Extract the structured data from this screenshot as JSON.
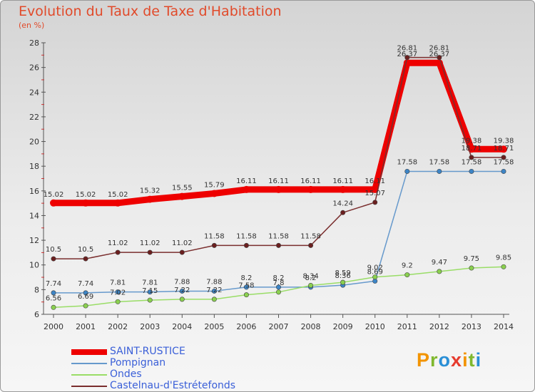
{
  "header": {
    "title": "Evolution du Taux de Taxe d'Habitation",
    "subtitle": "(en %)"
  },
  "brand": {
    "text": "Proxiti",
    "colors": [
      "#f29400",
      "#7fb82e",
      "#2a8fd6",
      "#e63b2e",
      "#f29400",
      "#7fb82e",
      "#2a8fd6"
    ]
  },
  "chart_data": {
    "type": "line",
    "title": "Evolution du Taux de Taxe d'Habitation",
    "subtitle": "(en %)",
    "xlabel": "",
    "ylabel": "",
    "ylim": [
      6,
      28
    ],
    "yticks": [
      6,
      8,
      10,
      12,
      14,
      16,
      18,
      20,
      22,
      24,
      26,
      28
    ],
    "grid": false,
    "legend_position": "bottom-left",
    "categories": [
      "2000",
      "2001",
      "2002",
      "2003",
      "2004",
      "2005",
      "2006",
      "2007",
      "2008",
      "2009",
      "2010",
      "2011",
      "2012",
      "2013",
      "2014"
    ],
    "series": [
      {
        "name": "SAINT-RUSTICE",
        "color": "#ee0000",
        "marker": "#ee0000",
        "thick": true,
        "values": [
          15.02,
          15.02,
          15.02,
          15.32,
          15.55,
          15.79,
          16.11,
          16.11,
          16.11,
          16.11,
          16.11,
          26.37,
          26.37,
          19.38,
          19.38
        ],
        "labels": [
          "15.02",
          "15.02",
          "15.02",
          "15.32",
          "15.55",
          "15.79",
          "16.11",
          "16.11",
          "16.11",
          "16.11",
          "16.11",
          "26.37",
          "26.37",
          "19.38",
          "19.38"
        ]
      },
      {
        "name": "Pompignan",
        "color": "#6699cc",
        "marker": "#3d85c6",
        "thick": false,
        "values": [
          7.74,
          7.74,
          7.81,
          7.81,
          7.88,
          7.88,
          8.2,
          8.2,
          8.2,
          8.36,
          8.69,
          17.58,
          17.58,
          17.58,
          17.58
        ],
        "labels": [
          "7.74",
          "7.74",
          "7.81",
          "7.81",
          "7.88",
          "7.88",
          "8.2",
          "8.2",
          "8.2",
          "8.36",
          "8.69",
          "17.58",
          "17.58",
          "17.58",
          "17.58"
        ]
      },
      {
        "name": "Ondes",
        "color": "#99dd66",
        "marker": "#8ad04f",
        "thick": false,
        "values": [
          6.56,
          6.69,
          7.02,
          7.15,
          7.22,
          7.22,
          7.58,
          7.8,
          8.34,
          8.59,
          9.02,
          9.2,
          9.47,
          9.75,
          9.85
        ],
        "labels": [
          "6.56",
          "6.69",
          "7.02",
          "7.15",
          "7.22",
          "7.22",
          "7.58",
          "7.8",
          "8.34",
          "8.59",
          "9.02",
          "9.2",
          "9.47",
          "9.75",
          "9.85"
        ]
      },
      {
        "name": "Castelnau-d'Estrétefonds",
        "color": "#7a2e2e",
        "marker": "#6b1f1f",
        "thick": false,
        "values": [
          10.5,
          10.5,
          11.02,
          11.02,
          11.02,
          11.58,
          11.58,
          11.58,
          11.58,
          14.24,
          15.07,
          26.81,
          26.81,
          18.71,
          18.71
        ],
        "labels": [
          "10.5",
          "10.5",
          "11.02",
          "11.02",
          "11.02",
          "11.58",
          "11.58",
          "11.58",
          "11.58",
          "14.24",
          "15.07",
          "26.81",
          "26.81",
          "18.71",
          "18.71"
        ]
      }
    ]
  }
}
